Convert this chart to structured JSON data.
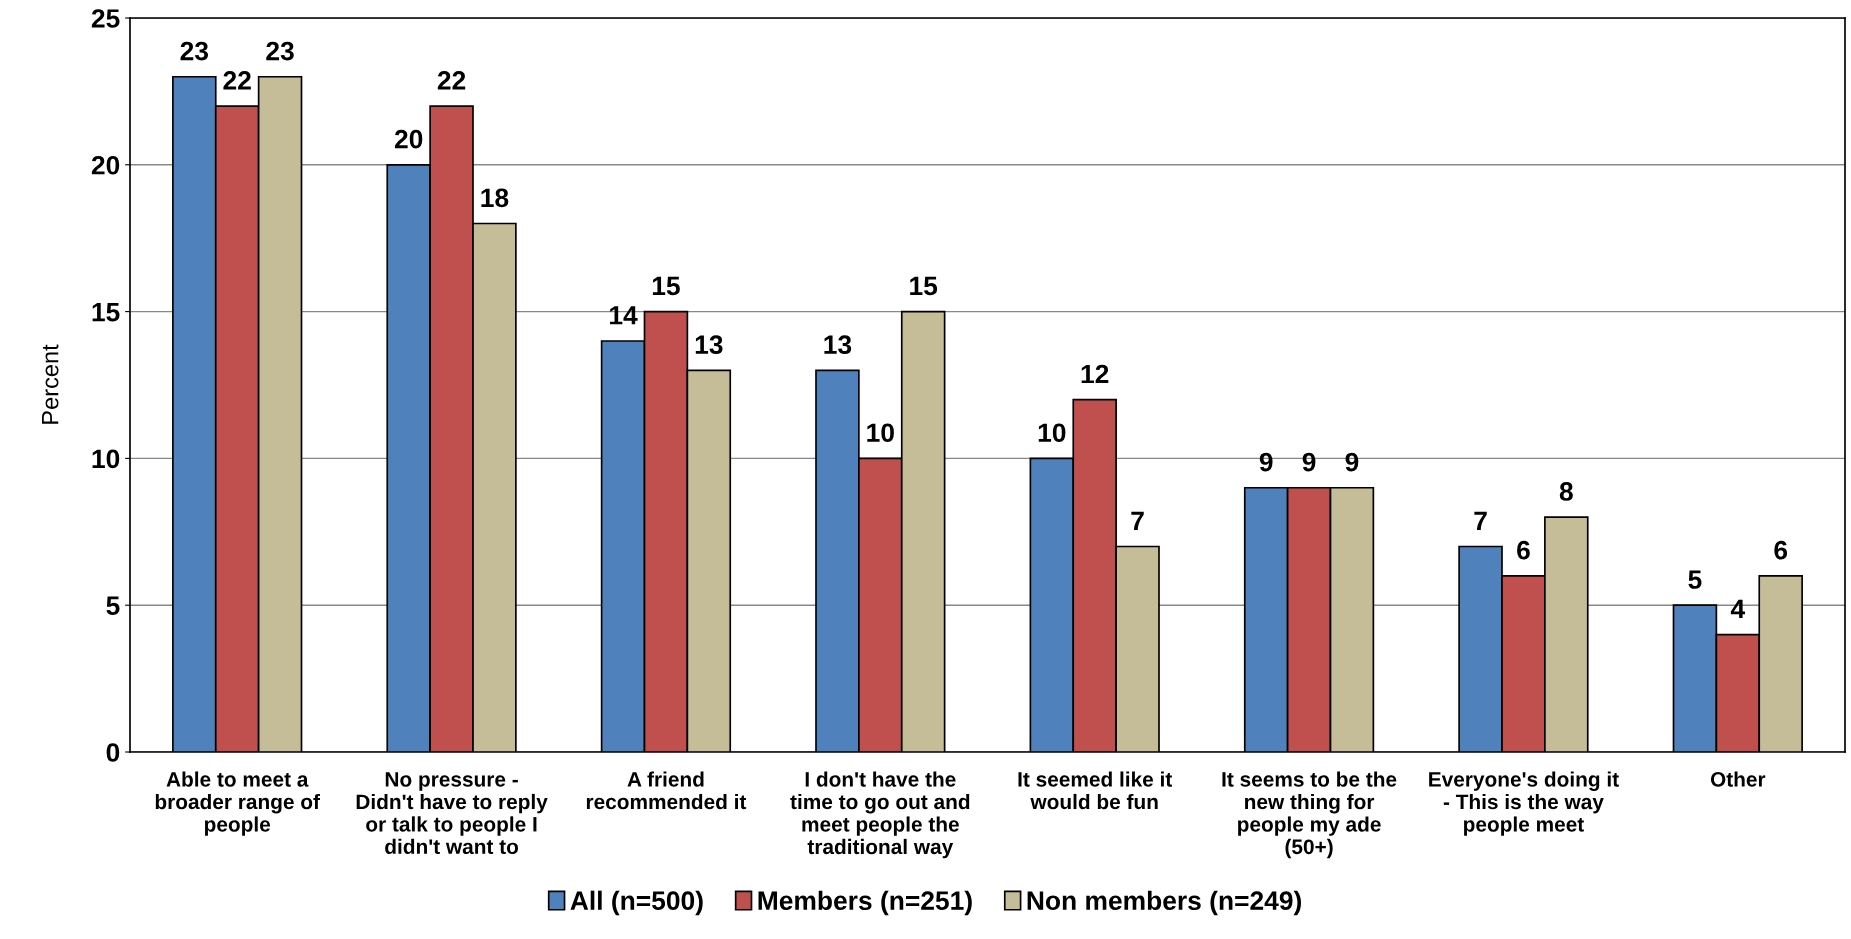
{
  "chart_data": {
    "type": "bar",
    "ylabel": "Percent",
    "categories": [
      "Able to meet a\nbroader range of\npeople",
      "No pressure -\nDidn't have to reply\nor talk to people I\ndidn't want to",
      "A friend\nrecommended it",
      "I don't have the\ntime to go out and\nmeet people the\ntraditional way",
      "It seemed like it\nwould be fun",
      "It seems to be the\nnew thing for\npeople my ade\n(50+)",
      "Everyone's doing it\n- This is the way\npeople meet",
      "Other"
    ],
    "series": [
      {
        "name": "All (n=500)",
        "color": "#4f81bd",
        "values": [
          23,
          20,
          14,
          13,
          10,
          9,
          7,
          5
        ]
      },
      {
        "name": "Members (n=251)",
        "color": "#c0504d",
        "values": [
          22,
          22,
          15,
          10,
          12,
          9,
          6,
          4
        ]
      },
      {
        "name": "Non members (n=249)",
        "color": "#c4bd97",
        "values": [
          23,
          18,
          13,
          15,
          7,
          9,
          8,
          6
        ]
      }
    ],
    "ylim": [
      0,
      25
    ],
    "yticks": [
      0,
      5,
      10,
      15,
      20,
      25
    ],
    "grid": "y",
    "legend": "bottom",
    "data_labels": true
  }
}
